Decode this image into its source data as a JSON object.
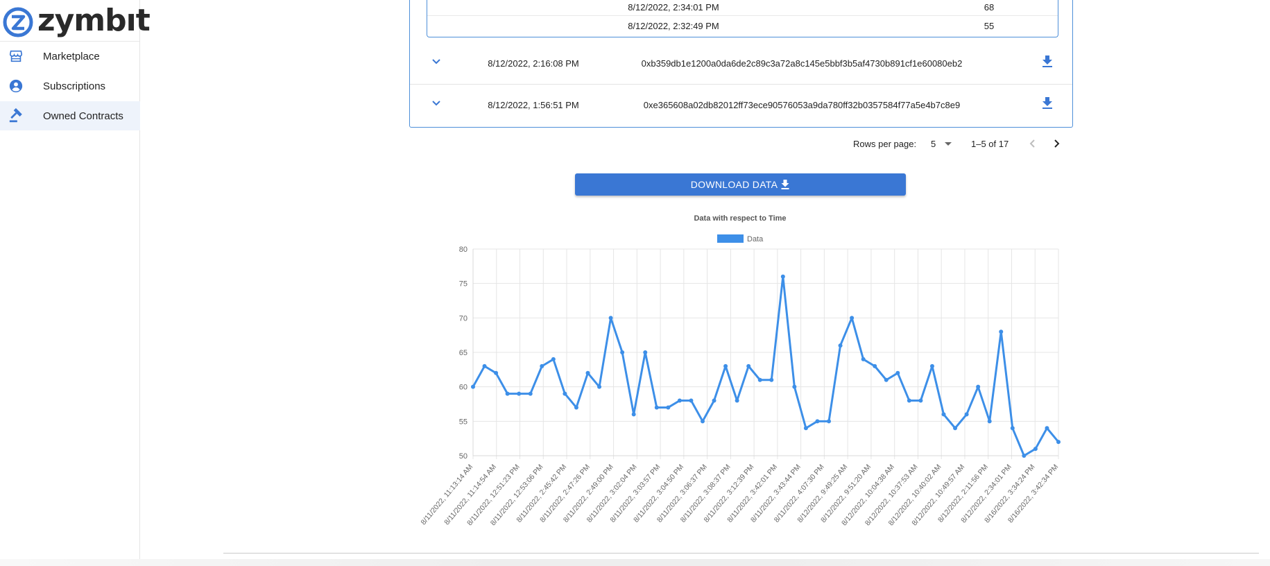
{
  "brand": {
    "name": "zymbıt",
    "accent": "#3a77d4"
  },
  "sidebar": {
    "items": [
      {
        "label": "Marketplace",
        "icon": "storefront-icon",
        "active": false
      },
      {
        "label": "Subscriptions",
        "icon": "account-circle-icon",
        "active": false
      },
      {
        "label": "Owned Contracts",
        "icon": "gavel-icon",
        "active": true
      }
    ]
  },
  "inner_table": {
    "rows": [
      {
        "time": "8/12/2022, 2:34:01 PM",
        "value": "68"
      },
      {
        "time": "8/12/2022, 2:32:49 PM",
        "value": "55"
      }
    ]
  },
  "contracts_table": {
    "rows": [
      {
        "time": "8/12/2022, 2:16:08 PM",
        "hash": "0xb359db1e1200a0da6de2c89c3a72a8c145e5bbf3b5af4730b891cf1e60080eb2"
      },
      {
        "time": "8/12/2022, 1:56:51 PM",
        "hash": "0xe365608a02db82012ff73ece90576053a9da780ff32b0357584f77a5e4b7c8e9"
      }
    ]
  },
  "pagination": {
    "rows_per_page_label": "Rows per page:",
    "rows_per_page": "5",
    "range": "1–5 of 17"
  },
  "download_button": {
    "label": "DOWNLOAD DATA"
  },
  "chart_data": {
    "type": "line",
    "title": "Data with respect to Time",
    "legend": [
      {
        "name": "Data",
        "color": "#3d8fe8"
      }
    ],
    "legend_position": "top",
    "ylim": [
      50,
      80
    ],
    "yticks": [
      50,
      55,
      60,
      65,
      70,
      75,
      80
    ],
    "grid": true,
    "x_tick_labels": [
      "8/11/2022, 11:13:14 AM",
      "8/11/2022, 11:14:54 AM",
      "8/11/2022, 12:51:23 PM",
      "8/11/2022, 12:53:06 PM",
      "8/11/2022, 2:45:42 PM",
      "8/11/2022, 2:47:26 PM",
      "8/11/2022, 2:49:00 PM",
      "8/11/2022, 3:02:04 PM",
      "8/11/2022, 3:03:57 PM",
      "8/11/2022, 3:04:50 PM",
      "8/11/2022, 3:06:37 PM",
      "8/11/2022, 3:08:37 PM",
      "8/11/2022, 3:12:39 PM",
      "8/11/2022, 3:42:01 PM",
      "8/11/2022, 3:43:44 PM",
      "8/11/2022, 4:07:30 PM",
      "8/12/2022, 9:49:25 AM",
      "8/12/2022, 9:51:20 AM",
      "8/12/2022, 10:04:38 AM",
      "8/12/2022, 10:37:53 AM",
      "8/12/2022, 10:40:02 AM",
      "8/12/2022, 10:49:57 AM",
      "8/12/2022, 2:11:56 PM",
      "8/12/2022, 2:34:01 PM",
      "8/16/2022, 3:34:24 PM",
      "8/16/2022, 3:42:34 PM"
    ],
    "values": [
      60,
      63,
      62,
      59,
      59,
      59,
      63,
      64,
      59,
      57,
      62,
      60,
      70,
      65,
      56,
      65,
      57,
      57,
      58,
      58,
      55,
      58,
      63,
      58,
      63,
      61,
      61,
      76,
      60,
      54,
      55,
      55,
      66,
      70,
      64,
      63,
      61,
      62,
      58,
      58,
      63,
      56,
      54,
      56,
      60,
      55,
      68,
      54,
      50,
      51,
      54,
      52
    ]
  }
}
